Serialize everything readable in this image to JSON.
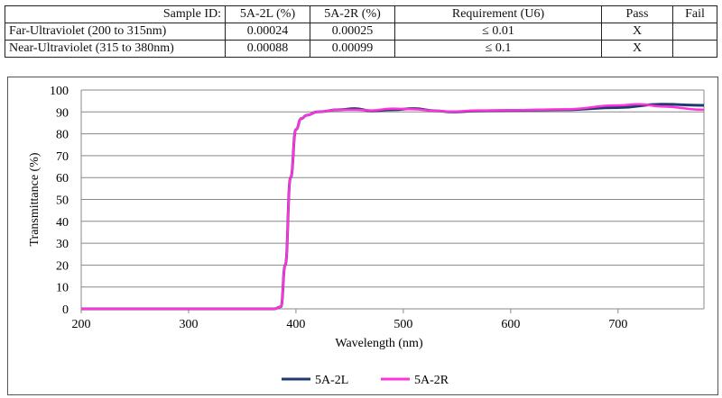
{
  "table": {
    "headers": [
      "Sample ID:",
      "5A-2L (%)",
      "5A-2R (%)",
      "Requirement (U6)",
      "Pass",
      "Fail"
    ],
    "rows": [
      [
        "Far-Ultraviolet  (200 to 315nm)",
        "0.00024",
        "0.00025",
        "≤ 0.01",
        "X",
        ""
      ],
      [
        "Near-Ultraviolet (315 to 380nm)",
        "0.00088",
        "0.00099",
        "≤ 0.1",
        "X",
        ""
      ]
    ]
  },
  "chart_data": {
    "type": "line",
    "title": "",
    "xlabel": "Wavelength (nm)",
    "ylabel": "Transmittance (%)",
    "xlim": [
      200,
      780
    ],
    "ylim": [
      0,
      100
    ],
    "xticks": [
      200,
      300,
      400,
      500,
      600,
      700
    ],
    "yticks": [
      0,
      10,
      20,
      30,
      40,
      50,
      60,
      70,
      80,
      90,
      100
    ],
    "grid": "horizontal",
    "legend": "bottom-center",
    "series": [
      {
        "name": "5A-2L",
        "color": "#1f3a6e",
        "x": [
          200,
          380,
          386,
          390,
          395,
          400,
          405,
          410,
          420,
          440,
          455,
          470,
          490,
          510,
          530,
          545,
          570,
          600,
          650,
          700,
          740,
          780
        ],
        "y": [
          0,
          0,
          1,
          20,
          60,
          82,
          87,
          88.5,
          90,
          91,
          91.5,
          90.5,
          91,
          91.5,
          90.5,
          90,
          90.5,
          90.7,
          91,
          92,
          93.5,
          93
        ]
      },
      {
        "name": "5A-2R",
        "color": "#ff33dd",
        "x": [
          200,
          380,
          386,
          390,
          395,
          400,
          405,
          410,
          420,
          440,
          455,
          470,
          490,
          510,
          530,
          545,
          570,
          600,
          650,
          700,
          720,
          740,
          780
        ],
        "y": [
          0,
          0,
          1,
          20,
          60,
          82,
          87,
          88.5,
          90,
          91,
          91,
          90.7,
          91.5,
          91.2,
          90.5,
          90.2,
          90.7,
          90.8,
          91.2,
          93,
          93.5,
          92.5,
          91
        ]
      }
    ]
  }
}
